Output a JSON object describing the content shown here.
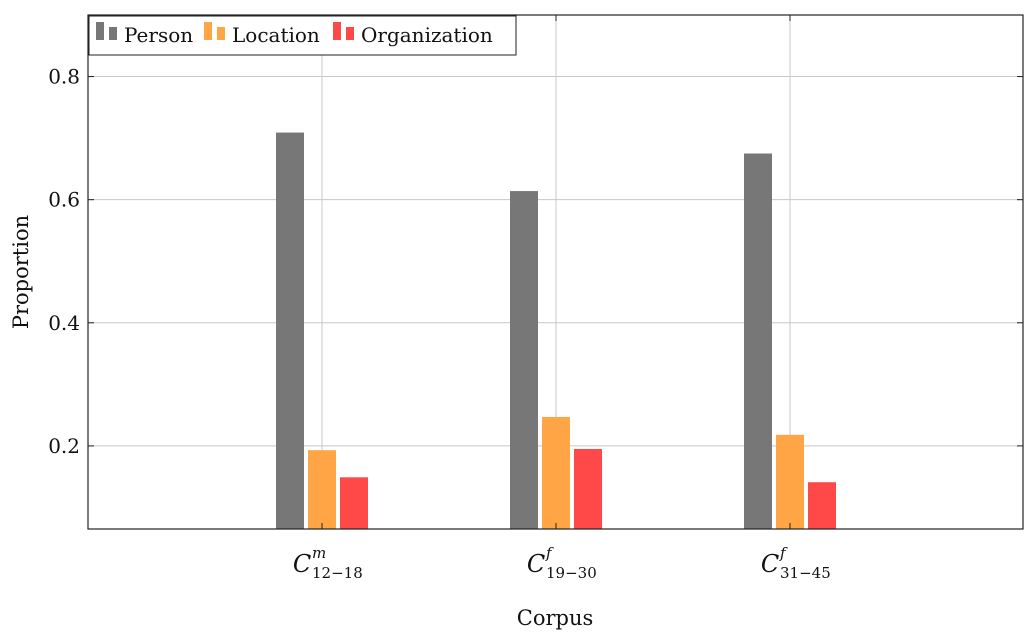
{
  "chart_data": {
    "type": "bar",
    "categories": [
      {
        "base": "C",
        "sup": "m",
        "sub": "12−18"
      },
      {
        "base": "C",
        "sup": "f",
        "sub": "19−30"
      },
      {
        "base": "C",
        "sup": "f",
        "sub": "31−45"
      }
    ],
    "series": [
      {
        "name": "Person",
        "color": "#777777",
        "values": [
          0.709,
          0.614,
          0.675
        ]
      },
      {
        "name": "Location",
        "color": "#ffa545",
        "values": [
          0.193,
          0.247,
          0.218
        ]
      },
      {
        "name": "Organization",
        "color": "#ff4848",
        "values": [
          0.149,
          0.195,
          0.141
        ]
      }
    ],
    "xlabel": "Corpus",
    "ylabel": "Proportion",
    "ylim": [
      0.065,
      0.9
    ],
    "yticks": [
      0.2,
      0.4,
      0.6,
      0.8
    ],
    "ytick_labels": [
      "0.2",
      "0.4",
      "0.6",
      "0.8"
    ],
    "grid": true,
    "legend": "top-left"
  }
}
